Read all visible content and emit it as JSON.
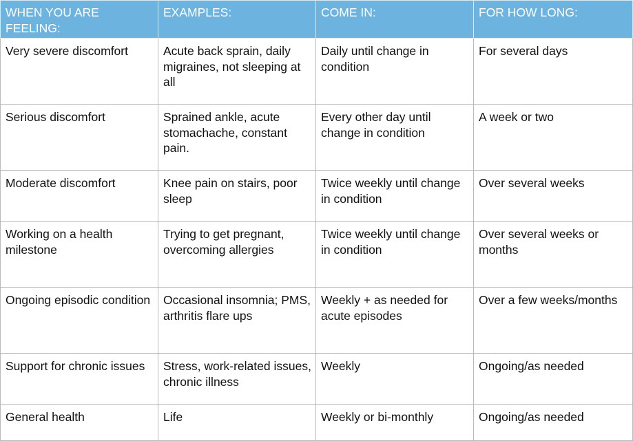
{
  "table": {
    "headers": [
      "WHEN YOU ARE FEELING:",
      "EXAMPLES:",
      "COME IN:",
      "FOR HOW LONG:"
    ],
    "rows": [
      [
        "Very severe discomfort",
        "Acute back sprain, daily migraines, not sleeping at all",
        "Daily until change in condition",
        "For several days"
      ],
      [
        "Serious discomfort",
        "Sprained ankle, acute stomachache, constant pain.",
        "Every other day until change in condition",
        "A week or two"
      ],
      [
        "Moderate discomfort",
        "Knee pain on stairs, poor sleep",
        "Twice weekly until change in condition",
        "Over several weeks"
      ],
      [
        "Working on a health milestone",
        "Trying to get pregnant, overcoming allergies",
        "Twice weekly until change in condition",
        "Over several weeks or months"
      ],
      [
        "Ongoing episodic condition",
        "Occasional insomnia; PMS, arthritis flare ups",
        "Weekly + as needed for acute episodes",
        "Over a few weeks/months"
      ],
      [
        "Support for chronic issues",
        "Stress, work-related issues, chronic illness",
        "Weekly",
        "Ongoing/as needed"
      ],
      [
        "General health",
        "Life",
        "Weekly or bi-monthly",
        "Ongoing/as needed"
      ]
    ]
  },
  "colors": {
    "header_background": "#6cb4df",
    "header_text": "#ffffff",
    "grid_line": "#b9b9b9"
  }
}
